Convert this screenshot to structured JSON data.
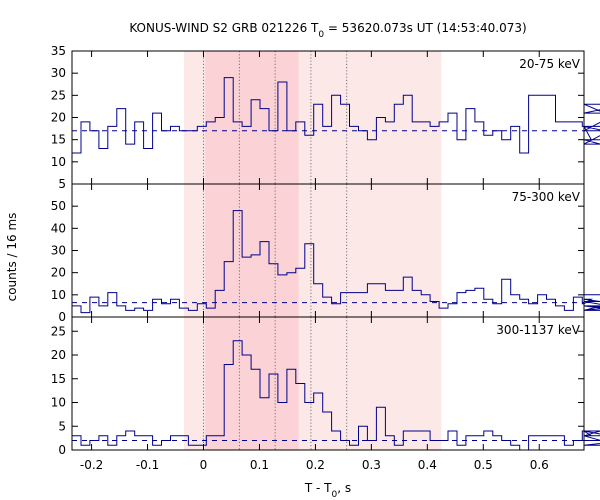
{
  "chart_data": {
    "type": "line",
    "title_main": "KONUS-WIND S2 GRB 021226 T",
    "title_sub": "0",
    "title_rest": " = 53620.073s UT (14:53:40.073)",
    "xlabel_main": "T - T",
    "xlabel_sub": "0",
    "xlabel_rest": ", s",
    "ylabel": "counts / 16 ms",
    "xlim": [
      -0.235,
      0.68
    ],
    "x_ticks": [
      -0.2,
      -0.1,
      0,
      0.1,
      0.2,
      0.3,
      0.4,
      0.5,
      0.6
    ],
    "x_tick_labels": [
      "-0.2",
      "-0.1",
      "0",
      "0.1",
      "0.2",
      "0.3",
      "0.4",
      "0.5",
      "0.6"
    ],
    "bin_width_s": 0.016,
    "bin_start": -0.235,
    "shaded_regions": [
      {
        "x0": -0.035,
        "x1": 0.425,
        "color": "#fde8e8"
      },
      {
        "x0": 0.003,
        "x1": 0.17,
        "color": "#fbd3d6"
      }
    ],
    "dotted_lines": [
      0.0,
      0.064,
      0.128,
      0.192,
      0.256
    ],
    "line_color": "#00008b",
    "series": [
      {
        "name": "20-75 keV",
        "ylim": [
          5,
          35
        ],
        "y_ticks": [
          5,
          10,
          15,
          20,
          25,
          30,
          35
        ],
        "y_tick_labels": [
          "",
          "10",
          "15",
          "20",
          "25",
          "30",
          "35"
        ],
        "background": 17,
        "values": [
          12,
          19,
          17,
          13,
          18,
          22,
          14,
          19,
          13,
          21,
          17,
          18,
          17,
          17,
          18,
          19,
          20,
          29,
          19,
          18,
          24,
          22,
          17,
          28,
          17,
          19,
          16,
          23,
          18,
          25,
          23,
          18,
          17,
          15,
          20,
          19,
          23,
          25,
          19,
          19,
          18,
          19,
          21,
          15,
          22,
          19,
          16,
          17,
          15,
          18,
          12,
          25,
          25,
          25,
          19,
          19,
          19,
          18,
          15,
          14,
          17,
          21,
          23,
          18,
          15
        ]
      },
      {
        "name": "75-300 keV",
        "ylim": [
          0,
          60
        ],
        "y_ticks": [
          0,
          10,
          20,
          30,
          40,
          50
        ],
        "y_tick_labels": [
          "0",
          "10",
          "20",
          "30",
          "40",
          "50"
        ],
        "background": 6.5,
        "values": [
          5,
          2,
          9,
          5,
          11,
          5,
          3,
          4,
          3,
          8,
          6,
          8,
          4,
          3,
          6,
          4,
          12,
          25,
          48,
          27,
          28,
          34,
          24,
          19,
          20,
          22,
          33,
          15,
          9,
          6,
          11,
          11,
          11,
          15,
          15,
          12,
          12,
          18,
          12,
          10,
          7,
          4,
          6,
          11,
          12,
          13,
          8,
          6,
          17,
          10,
          8,
          6,
          10,
          8,
          5,
          3,
          9,
          6,
          8,
          7,
          5,
          3,
          5,
          3,
          10
        ]
      },
      {
        "name": "300-1137 keV",
        "ylim": [
          0,
          28
        ],
        "y_ticks": [
          0,
          5,
          10,
          15,
          20,
          25
        ],
        "y_tick_labels": [
          "0",
          "5",
          "10",
          "15",
          "20",
          "25"
        ],
        "background": 2,
        "values": [
          3,
          1,
          2,
          3,
          1,
          3,
          4,
          3,
          3,
          1,
          2,
          3,
          3,
          1,
          1,
          3,
          3,
          18,
          23,
          20,
          17,
          11,
          16,
          10,
          17,
          14,
          10,
          12,
          8,
          4,
          2,
          1,
          5,
          2,
          9,
          3,
          1,
          4,
          4,
          4,
          2,
          2,
          4,
          1,
          3,
          3,
          4,
          3,
          2,
          1,
          0,
          3,
          3,
          3,
          3,
          1,
          2,
          4,
          3,
          4,
          3,
          1,
          2,
          2,
          2
        ]
      }
    ]
  }
}
